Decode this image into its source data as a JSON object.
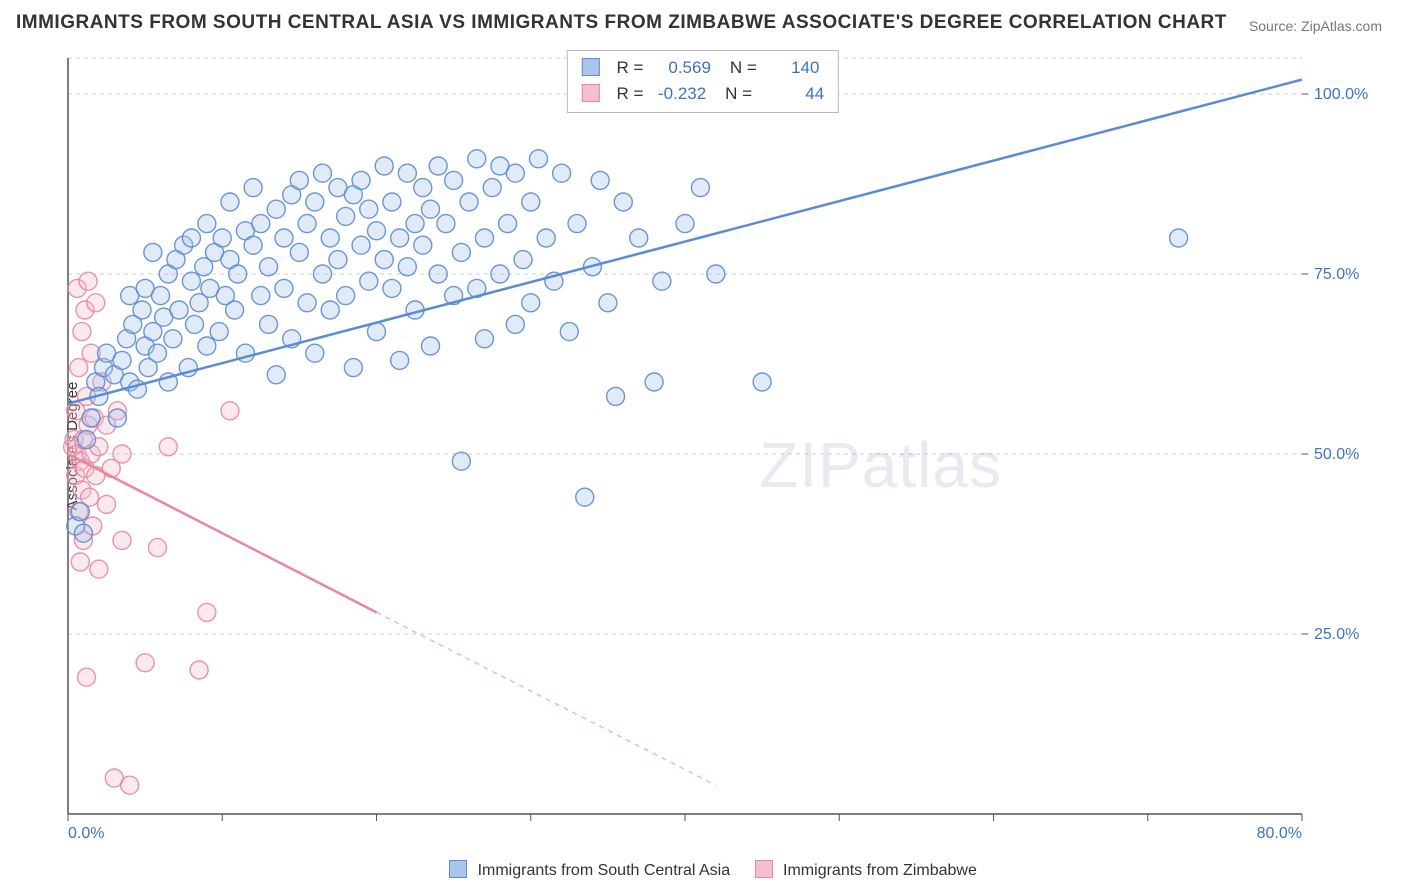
{
  "title": "IMMIGRANTS FROM SOUTH CENTRAL ASIA VS IMMIGRANTS FROM ZIMBABWE ASSOCIATE'S DEGREE CORRELATION CHART",
  "source": "Source: ZipAtlas.com",
  "watermark": "ZIPatlas",
  "ylabel": "Associate's Degree",
  "chart": {
    "type": "scatter",
    "xlim": [
      0,
      80
    ],
    "ylim": [
      0,
      105
    ],
    "xtick_major": [
      0,
      10,
      20,
      30,
      40,
      50,
      60,
      70,
      80
    ],
    "xtick_labels": {
      "0": "0.0%",
      "80": "80.0%"
    },
    "ytick_major": [
      25,
      50,
      75,
      100
    ],
    "ytick_labels": {
      "25": "25.0%",
      "50": "50.0%",
      "75": "75.0%",
      "100": "100.0%"
    },
    "grid_color": "#cccccc",
    "background_color": "#ffffff",
    "axis_color": "#555555",
    "tick_label_color": "#3b73c4",
    "marker_radius": 9,
    "marker_opacity": 0.35,
    "line_width": 2.5
  },
  "series": [
    {
      "name": "Immigrants from South Central Asia",
      "color_fill": "#a9c5eb",
      "color_stroke": "#5b8bd4",
      "trend": {
        "x1": 0,
        "y1": 57,
        "x2": 80,
        "y2": 102,
        "dash": false
      },
      "stats": {
        "R": "0.569",
        "N": "140"
      },
      "points": [
        [
          0.5,
          40
        ],
        [
          0.8,
          42
        ],
        [
          1.0,
          39
        ],
        [
          1.2,
          52
        ],
        [
          1.5,
          55
        ],
        [
          1.8,
          60
        ],
        [
          2.0,
          58
        ],
        [
          2.3,
          62
        ],
        [
          2.5,
          64
        ],
        [
          3.0,
          61
        ],
        [
          3.2,
          55
        ],
        [
          3.5,
          63
        ],
        [
          3.8,
          66
        ],
        [
          4.0,
          60
        ],
        [
          4.0,
          72
        ],
        [
          4.2,
          68
        ],
        [
          4.5,
          59
        ],
        [
          4.8,
          70
        ],
        [
          5.0,
          65
        ],
        [
          5.0,
          73
        ],
        [
          5.2,
          62
        ],
        [
          5.5,
          67
        ],
        [
          5.5,
          78
        ],
        [
          5.8,
          64
        ],
        [
          6.0,
          72
        ],
        [
          6.2,
          69
        ],
        [
          6.5,
          60
        ],
        [
          6.5,
          75
        ],
        [
          6.8,
          66
        ],
        [
          7.0,
          77
        ],
        [
          7.2,
          70
        ],
        [
          7.5,
          79
        ],
        [
          7.8,
          62
        ],
        [
          8.0,
          74
        ],
        [
          8.0,
          80
        ],
        [
          8.2,
          68
        ],
        [
          8.5,
          71
        ],
        [
          8.8,
          76
        ],
        [
          9.0,
          65
        ],
        [
          9.0,
          82
        ],
        [
          9.2,
          73
        ],
        [
          9.5,
          78
        ],
        [
          9.8,
          67
        ],
        [
          10.0,
          80
        ],
        [
          10.2,
          72
        ],
        [
          10.5,
          77
        ],
        [
          10.5,
          85
        ],
        [
          10.8,
          70
        ],
        [
          11.0,
          75
        ],
        [
          11.5,
          81
        ],
        [
          11.5,
          64
        ],
        [
          12.0,
          79
        ],
        [
          12.0,
          87
        ],
        [
          12.5,
          72
        ],
        [
          12.5,
          82
        ],
        [
          13.0,
          76
        ],
        [
          13.0,
          68
        ],
        [
          13.5,
          84
        ],
        [
          13.5,
          61
        ],
        [
          14.0,
          80
        ],
        [
          14.0,
          73
        ],
        [
          14.5,
          86
        ],
        [
          14.5,
          66
        ],
        [
          15.0,
          78
        ],
        [
          15.0,
          88
        ],
        [
          15.5,
          71
        ],
        [
          15.5,
          82
        ],
        [
          16.0,
          85
        ],
        [
          16.0,
          64
        ],
        [
          16.5,
          75
        ],
        [
          16.5,
          89
        ],
        [
          17.0,
          80
        ],
        [
          17.0,
          70
        ],
        [
          17.5,
          87
        ],
        [
          17.5,
          77
        ],
        [
          18.0,
          83
        ],
        [
          18.0,
          72
        ],
        [
          18.5,
          62
        ],
        [
          18.5,
          86
        ],
        [
          19.0,
          79
        ],
        [
          19.0,
          88
        ],
        [
          19.5,
          74
        ],
        [
          19.5,
          84
        ],
        [
          20.0,
          81
        ],
        [
          20.0,
          67
        ],
        [
          20.5,
          90
        ],
        [
          20.5,
          77
        ],
        [
          21.0,
          85
        ],
        [
          21.0,
          73
        ],
        [
          21.5,
          63
        ],
        [
          21.5,
          80
        ],
        [
          22.0,
          89
        ],
        [
          22.0,
          76
        ],
        [
          22.5,
          82
        ],
        [
          22.5,
          70
        ],
        [
          23.0,
          87
        ],
        [
          23.0,
          79
        ],
        [
          23.5,
          65
        ],
        [
          23.5,
          84
        ],
        [
          24.0,
          90
        ],
        [
          24.0,
          75
        ],
        [
          24.5,
          82
        ],
        [
          25.0,
          88
        ],
        [
          25.0,
          72
        ],
        [
          25.5,
          78
        ],
        [
          25.5,
          49
        ],
        [
          26.0,
          85
        ],
        [
          26.5,
          73
        ],
        [
          26.5,
          91
        ],
        [
          27.0,
          80
        ],
        [
          27.0,
          66
        ],
        [
          27.5,
          87
        ],
        [
          28.0,
          75
        ],
        [
          28.0,
          90
        ],
        [
          28.5,
          82
        ],
        [
          29.0,
          68
        ],
        [
          29.0,
          89
        ],
        [
          29.5,
          77
        ],
        [
          30.0,
          85
        ],
        [
          30.0,
          71
        ],
        [
          30.5,
          91
        ],
        [
          31.0,
          80
        ],
        [
          31.5,
          74
        ],
        [
          32.0,
          89
        ],
        [
          32.5,
          67
        ],
        [
          33.0,
          82
        ],
        [
          33.5,
          44
        ],
        [
          34.0,
          76
        ],
        [
          34.5,
          88
        ],
        [
          35.0,
          71
        ],
        [
          35.5,
          58
        ],
        [
          36.0,
          85
        ],
        [
          37.0,
          80
        ],
        [
          38.0,
          60
        ],
        [
          38.5,
          74
        ],
        [
          40.0,
          82
        ],
        [
          41.0,
          87
        ],
        [
          42.0,
          75
        ],
        [
          45.0,
          60
        ],
        [
          72.0,
          80
        ]
      ]
    },
    {
      "name": "Immigrants from Zimbabwe",
      "color_fill": "#f4c0cd",
      "color_stroke": "#e986a2",
      "trend": {
        "x1": 0,
        "y1": 50,
        "x2": 20,
        "y2": 28,
        "extend_x": 42,
        "extend_y": 4,
        "dash": true
      },
      "stats": {
        "R": "-0.232",
        "N": "44"
      },
      "points": [
        [
          0.3,
          51
        ],
        [
          0.4,
          52
        ],
        [
          0.5,
          47
        ],
        [
          0.5,
          56
        ],
        [
          0.6,
          50
        ],
        [
          0.6,
          73
        ],
        [
          0.7,
          42
        ],
        [
          0.7,
          62
        ],
        [
          0.8,
          35
        ],
        [
          0.8,
          49
        ],
        [
          0.9,
          45
        ],
        [
          0.9,
          67
        ],
        [
          1.0,
          52
        ],
        [
          1.0,
          38
        ],
        [
          1.1,
          70
        ],
        [
          1.1,
          48
        ],
        [
          1.2,
          58
        ],
        [
          1.2,
          19
        ],
        [
          1.3,
          54
        ],
        [
          1.3,
          74
        ],
        [
          1.4,
          44
        ],
        [
          1.5,
          50
        ],
        [
          1.5,
          64
        ],
        [
          1.6,
          40
        ],
        [
          1.7,
          55
        ],
        [
          1.8,
          47
        ],
        [
          1.8,
          71
        ],
        [
          2.0,
          51
        ],
        [
          2.0,
          34
        ],
        [
          2.2,
          60
        ],
        [
          2.5,
          43
        ],
        [
          2.5,
          54
        ],
        [
          2.8,
          48
        ],
        [
          3.0,
          5
        ],
        [
          3.2,
          56
        ],
        [
          3.5,
          38
        ],
        [
          3.5,
          50
        ],
        [
          4.0,
          4
        ],
        [
          5.0,
          21
        ],
        [
          5.8,
          37
        ],
        [
          6.5,
          51
        ],
        [
          8.5,
          20
        ],
        [
          9.0,
          28
        ],
        [
          10.5,
          56
        ]
      ]
    }
  ],
  "legend_bottom": {
    "items": [
      {
        "label": "Immigrants from South Central Asia",
        "fill": "#a9c5eb",
        "stroke": "#5b8bd4"
      },
      {
        "label": "Immigrants from Zimbabwe",
        "fill": "#f4c0cd",
        "stroke": "#e986a2"
      }
    ]
  }
}
